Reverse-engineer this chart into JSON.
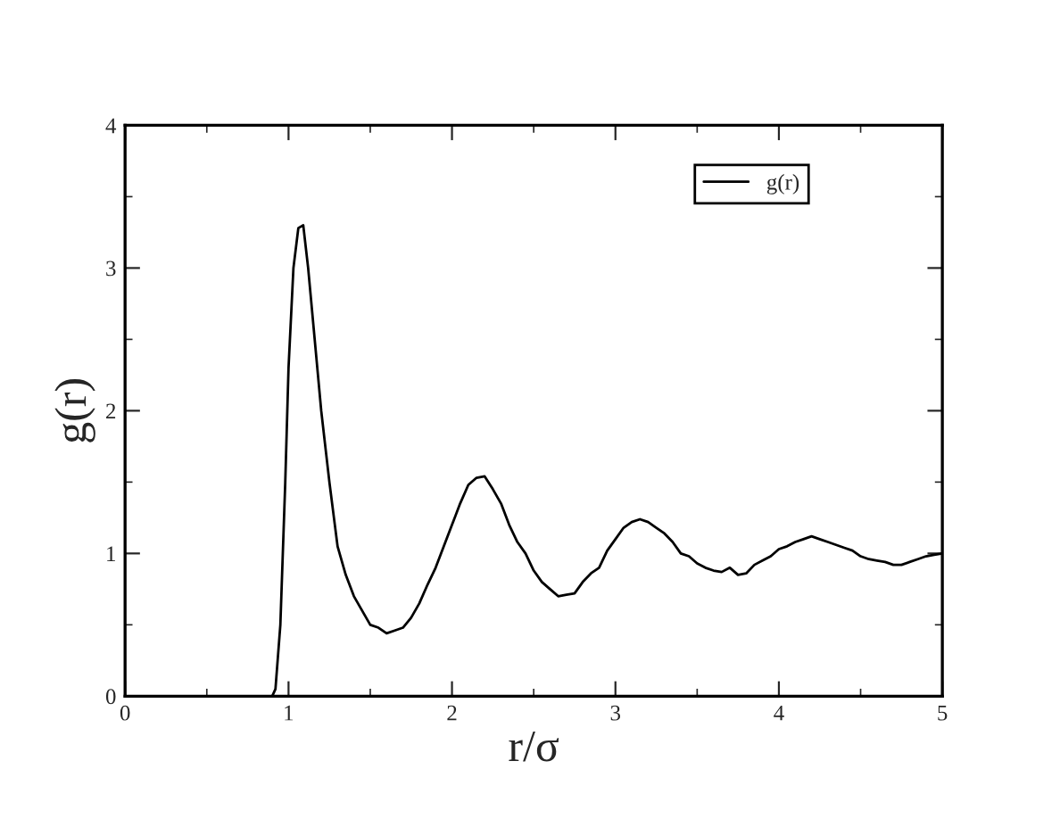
{
  "chart_data": {
    "type": "line",
    "xlabel": "r/σ",
    "ylabel": "g(r)",
    "xlim": [
      0,
      5
    ],
    "ylim": [
      0,
      4
    ],
    "xticks": [
      0,
      1,
      2,
      3,
      4,
      5
    ],
    "yticks": [
      0,
      1,
      2,
      3,
      4
    ],
    "grid": false,
    "legend": "top right",
    "marker": "none",
    "line_style": "solid",
    "series": [
      {
        "name": "g(r)",
        "color": "#000000",
        "x": [
          0,
          0.5,
          0.9,
          0.92,
          0.95,
          0.98,
          1.0,
          1.03,
          1.06,
          1.09,
          1.12,
          1.16,
          1.2,
          1.25,
          1.3,
          1.35,
          1.4,
          1.45,
          1.5,
          1.55,
          1.6,
          1.65,
          1.7,
          1.75,
          1.8,
          1.85,
          1.9,
          1.95,
          2.0,
          2.05,
          2.1,
          2.15,
          2.2,
          2.25,
          2.3,
          2.35,
          2.4,
          2.45,
          2.5,
          2.55,
          2.6,
          2.65,
          2.7,
          2.75,
          2.8,
          2.85,
          2.9,
          2.95,
          3.0,
          3.05,
          3.1,
          3.15,
          3.2,
          3.25,
          3.3,
          3.35,
          3.4,
          3.45,
          3.5,
          3.55,
          3.6,
          3.65,
          3.7,
          3.75,
          3.8,
          3.85,
          3.9,
          3.95,
          4.0,
          4.05,
          4.1,
          4.15,
          4.2,
          4.25,
          4.3,
          4.35,
          4.4,
          4.45,
          4.5,
          4.55,
          4.6,
          4.65,
          4.7,
          4.75,
          4.8,
          4.85,
          4.9,
          4.95,
          5.0
        ],
        "values": [
          0,
          0,
          0,
          0.05,
          0.5,
          1.5,
          2.3,
          3.0,
          3.28,
          3.3,
          3.0,
          2.5,
          2.0,
          1.5,
          1.05,
          0.85,
          0.7,
          0.6,
          0.5,
          0.48,
          0.44,
          0.46,
          0.48,
          0.55,
          0.65,
          0.78,
          0.9,
          1.05,
          1.2,
          1.35,
          1.48,
          1.53,
          1.54,
          1.45,
          1.35,
          1.2,
          1.08,
          1.0,
          0.88,
          0.8,
          0.75,
          0.7,
          0.71,
          0.72,
          0.8,
          0.86,
          0.9,
          1.02,
          1.1,
          1.18,
          1.22,
          1.24,
          1.22,
          1.18,
          1.14,
          1.08,
          1.0,
          0.98,
          0.93,
          0.9,
          0.88,
          0.87,
          0.9,
          0.85,
          0.86,
          0.92,
          0.95,
          0.98,
          1.03,
          1.05,
          1.08,
          1.1,
          1.12,
          1.1,
          1.08,
          1.06,
          1.04,
          1.02,
          0.98,
          0.96,
          0.95,
          0.94,
          0.92,
          0.92,
          0.94,
          0.96,
          0.98,
          0.99,
          1.0
        ]
      }
    ]
  }
}
